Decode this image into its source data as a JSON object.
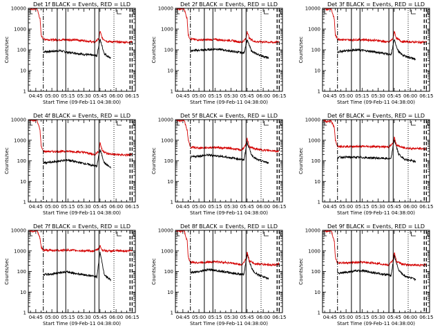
{
  "figure": {
    "background": "#ffffff",
    "events_color": "#000000",
    "lld_color": "#d40000"
  },
  "chart_data": [
    {
      "type": "line",
      "title": "Det 1f BLACK = Events, RED = LLD",
      "xlabel": "Start Time (09-Feb-11 04:38:00)",
      "ylabel": "Counts/sec",
      "yscale": "log",
      "ylim": [
        1,
        10000
      ],
      "xlim": [
        "04:38",
        "06:18"
      ],
      "ytick_labels": [
        "1",
        "10",
        "100",
        "1000",
        "10000"
      ],
      "xtick_labels": [
        "04:45",
        "05:00",
        "05:15",
        "05:30",
        "05:45",
        "06:00",
        "06:15"
      ],
      "series": [
        {
          "name": "Events",
          "color": "#000000",
          "x": [
            "04:52",
            "05:00",
            "05:08",
            "05:15",
            "05:22",
            "05:30",
            "05:38",
            "05:42",
            "05:45",
            "05:49",
            "05:52",
            "05:55"
          ],
          "y": [
            80,
            85,
            90,
            75,
            70,
            60,
            55,
            50,
            320,
            65,
            50,
            40
          ]
        },
        {
          "name": "LLD",
          "color": "#d40000",
          "x": [
            "04:39",
            "04:42",
            "04:46",
            "04:49",
            "04:50",
            "04:52",
            "05:00",
            "05:15",
            "05:30",
            "05:40",
            "05:44",
            "05:45",
            "05:47",
            "05:52",
            "06:00",
            "06:10",
            "06:15"
          ],
          "y": [
            10000,
            9000,
            10000,
            3000,
            500,
            330,
            300,
            310,
            280,
            230,
            350,
            800,
            360,
            250,
            240,
            230,
            240
          ]
        }
      ]
    },
    {
      "type": "line",
      "title": "Det 2f BLACK = Events, RED = LLD",
      "xlabel": "Start Time (09-Feb-11 04:38:00)",
      "ylabel": "Counts/sec",
      "yscale": "log",
      "ylim": [
        1,
        10000
      ],
      "xlim": [
        "04:38",
        "06:18"
      ],
      "ytick_labels": [
        "1",
        "10",
        "100",
        "1000",
        "10000"
      ],
      "xtick_labels": [
        "04:45",
        "05:00",
        "05:15",
        "05:30",
        "05:45",
        "06:00",
        "06:15"
      ],
      "series": [
        {
          "name": "Events",
          "color": "#000000",
          "x": [
            "04:52",
            "05:00",
            "05:08",
            "05:15",
            "05:22",
            "05:30",
            "05:38",
            "05:42",
            "05:45",
            "05:49",
            "05:52",
            "05:55",
            "06:05"
          ],
          "y": [
            90,
            95,
            100,
            110,
            100,
            85,
            75,
            70,
            300,
            90,
            70,
            60,
            40
          ]
        },
        {
          "name": "LLD",
          "color": "#d40000",
          "x": [
            "04:39",
            "04:42",
            "04:46",
            "04:49",
            "04:50",
            "04:52",
            "05:00",
            "05:15",
            "05:30",
            "05:40",
            "05:44",
            "05:45",
            "05:47",
            "05:52",
            "06:00",
            "06:10",
            "06:15"
          ],
          "y": [
            10000,
            9000,
            10000,
            3000,
            500,
            330,
            300,
            310,
            280,
            230,
            350,
            800,
            360,
            250,
            240,
            230,
            240
          ]
        }
      ]
    },
    {
      "type": "line",
      "title": "Det 3f BLACK = Events, RED = LLD",
      "xlabel": "Start Time (09-Feb-11 04:38:00)",
      "ylabel": "Counts/sec",
      "yscale": "log",
      "ylim": [
        1,
        10000
      ],
      "xlim": [
        "04:38",
        "06:18"
      ],
      "ytick_labels": [
        "1",
        "10",
        "100",
        "1000",
        "10000"
      ],
      "xtick_labels": [
        "04:45",
        "05:00",
        "05:15",
        "05:30",
        "05:45",
        "06:00",
        "06:15"
      ],
      "series": [
        {
          "name": "Events",
          "color": "#000000",
          "x": [
            "04:52",
            "05:00",
            "05:08",
            "05:15",
            "05:22",
            "05:30",
            "05:38",
            "05:42",
            "05:45",
            "05:49",
            "05:52",
            "05:55",
            "06:05"
          ],
          "y": [
            80,
            90,
            100,
            95,
            85,
            75,
            65,
            55,
            300,
            80,
            60,
            50,
            35
          ]
        },
        {
          "name": "LLD",
          "color": "#d40000",
          "x": [
            "04:39",
            "04:42",
            "04:46",
            "04:49",
            "04:50",
            "04:52",
            "05:00",
            "05:15",
            "05:30",
            "05:40",
            "05:44",
            "05:45",
            "05:47",
            "05:52",
            "06:00",
            "06:10",
            "06:15"
          ],
          "y": [
            10000,
            9000,
            10000,
            3000,
            500,
            330,
            300,
            310,
            280,
            230,
            350,
            800,
            360,
            250,
            240,
            230,
            240
          ]
        }
      ]
    },
    {
      "type": "line",
      "title": "Det 4f BLACK = Events, RED = LLD",
      "xlabel": "Start Time (09-Feb-11 04:38:00)",
      "ylabel": "Counts/sec",
      "yscale": "log",
      "ylim": [
        1,
        10000
      ],
      "xlim": [
        "04:38",
        "06:18"
      ],
      "ytick_labels": [
        "1",
        "10",
        "100",
        "1000",
        "10000"
      ],
      "xtick_labels": [
        "04:45",
        "05:00",
        "05:15",
        "05:30",
        "05:45",
        "06:00",
        "06:15"
      ],
      "series": [
        {
          "name": "Events",
          "color": "#000000",
          "x": [
            "04:52",
            "05:00",
            "05:08",
            "05:15",
            "05:22",
            "05:30",
            "05:38",
            "05:42",
            "05:45",
            "05:49",
            "05:52",
            "05:55"
          ],
          "y": [
            80,
            85,
            100,
            110,
            90,
            75,
            60,
            55,
            350,
            80,
            60,
            45
          ]
        },
        {
          "name": "LLD",
          "color": "#d40000",
          "x": [
            "04:39",
            "04:42",
            "04:46",
            "04:49",
            "04:50",
            "04:52",
            "05:00",
            "05:15",
            "05:30",
            "05:40",
            "05:44",
            "05:45",
            "05:47",
            "05:52",
            "06:00",
            "06:10",
            "06:15"
          ],
          "y": [
            10000,
            9000,
            10000,
            3000,
            500,
            290,
            280,
            290,
            260,
            200,
            300,
            800,
            320,
            220,
            200,
            190,
            200
          ]
        }
      ]
    },
    {
      "type": "line",
      "title": "Det 5f BLACK = Events, RED = LLD",
      "xlabel": "Start Time (09-Feb-11 04:38:00)",
      "ylabel": "Counts/sec",
      "yscale": "log",
      "ylim": [
        1,
        10000
      ],
      "xlim": [
        "04:38",
        "06:18"
      ],
      "ytick_labels": [
        "1",
        "10",
        "100",
        "1000",
        "10000"
      ],
      "xtick_labels": [
        "04:45",
        "05:00",
        "05:15",
        "05:30",
        "05:45",
        "06:00",
        "06:15"
      ],
      "series": [
        {
          "name": "Events",
          "color": "#000000",
          "x": [
            "04:52",
            "05:00",
            "05:08",
            "05:15",
            "05:22",
            "05:30",
            "05:38",
            "05:42",
            "05:45",
            "05:49",
            "05:52",
            "05:55",
            "06:05"
          ],
          "y": [
            150,
            170,
            190,
            180,
            160,
            140,
            120,
            110,
            800,
            200,
            140,
            110,
            80
          ]
        },
        {
          "name": "LLD",
          "color": "#d40000",
          "x": [
            "04:39",
            "04:42",
            "04:46",
            "04:49",
            "04:50",
            "04:52",
            "05:00",
            "05:15",
            "05:30",
            "05:40",
            "05:44",
            "05:45",
            "05:47",
            "05:52",
            "06:00",
            "06:10",
            "06:15"
          ],
          "y": [
            10000,
            9000,
            10000,
            3000,
            1000,
            460,
            420,
            450,
            400,
            330,
            600,
            1200,
            500,
            380,
            330,
            310,
            290
          ]
        }
      ]
    },
    {
      "type": "line",
      "title": "Det 6f BLACK = Events, RED = LLD",
      "xlabel": "Start Time (09-Feb-11 04:38:00)",
      "ylabel": "Counts/sec",
      "yscale": "log",
      "ylim": [
        1,
        10000
      ],
      "xlim": [
        "04:38",
        "06:18"
      ],
      "ytick_labels": [
        "1",
        "10",
        "100",
        "1000",
        "10000"
      ],
      "xtick_labels": [
        "04:45",
        "05:00",
        "05:15",
        "05:30",
        "05:45",
        "06:00",
        "06:15"
      ],
      "series": [
        {
          "name": "Events",
          "color": "#000000",
          "x": [
            "04:52",
            "05:00",
            "05:08",
            "05:15",
            "05:22",
            "05:30",
            "05:38",
            "05:42",
            "05:45",
            "05:49",
            "05:52",
            "05:55",
            "06:05"
          ],
          "y": [
            150,
            150,
            150,
            145,
            140,
            135,
            130,
            125,
            1100,
            220,
            150,
            120,
            90
          ]
        },
        {
          "name": "LLD",
          "color": "#d40000",
          "x": [
            "04:39",
            "04:42",
            "04:46",
            "04:49",
            "04:50",
            "04:52",
            "05:00",
            "05:15",
            "05:30",
            "05:40",
            "05:44",
            "05:45",
            "05:47",
            "05:52",
            "06:00",
            "06:10",
            "06:15"
          ],
          "y": [
            9000,
            8000,
            9000,
            4000,
            1000,
            520,
            500,
            500,
            490,
            470,
            700,
            1400,
            600,
            450,
            400,
            390,
            380
          ]
        }
      ]
    },
    {
      "type": "line",
      "title": "Det 7f BLACK = Events, RED = LLD",
      "xlabel": "Start Time (09-Feb-11 04:38:00)",
      "ylabel": "Counts/sec",
      "yscale": "log",
      "ylim": [
        1,
        10000
      ],
      "xlim": [
        "04:38",
        "06:18"
      ],
      "ytick_labels": [
        "1",
        "10",
        "100",
        "1000",
        "10000"
      ],
      "xtick_labels": [
        "04:45",
        "05:00",
        "05:15",
        "05:30",
        "05:45",
        "06:00",
        "06:15"
      ],
      "series": [
        {
          "name": "Events",
          "color": "#000000",
          "x": [
            "04:52",
            "05:00",
            "05:08",
            "05:15",
            "05:22",
            "05:30",
            "05:38",
            "05:42",
            "05:45",
            "05:49",
            "05:52",
            "05:55"
          ],
          "y": [
            70,
            75,
            90,
            95,
            80,
            70,
            60,
            55,
            900,
            70,
            50,
            40
          ]
        },
        {
          "name": "LLD",
          "color": "#d40000",
          "x": [
            "04:39",
            "04:42",
            "04:46",
            "04:49",
            "04:50",
            "04:52",
            "05:00",
            "05:15",
            "05:30",
            "05:40",
            "05:44",
            "05:45",
            "05:47",
            "05:52",
            "06:00",
            "06:10",
            "06:15"
          ],
          "y": [
            10000,
            9000,
            10000,
            4000,
            1500,
            1100,
            1050,
            1100,
            1000,
            1000,
            1300,
            1800,
            1100,
            1000,
            1000,
            1000,
            1050
          ]
        }
      ]
    },
    {
      "type": "line",
      "title": "Det 8f BLACK = Events, RED = LLD",
      "xlabel": "Start Time (09-Feb-11 04:38:00)",
      "ylabel": "Counts/sec",
      "yscale": "log",
      "ylim": [
        1,
        10000
      ],
      "xlim": [
        "04:38",
        "06:18"
      ],
      "ytick_labels": [
        "1",
        "10",
        "100",
        "1000",
        "10000"
      ],
      "xtick_labels": [
        "04:45",
        "05:00",
        "05:15",
        "05:30",
        "05:45",
        "06:00",
        "06:15"
      ],
      "series": [
        {
          "name": "Events",
          "color": "#000000",
          "x": [
            "04:52",
            "05:00",
            "05:08",
            "05:15",
            "05:22",
            "05:30",
            "05:38",
            "05:42",
            "05:45",
            "05:49",
            "05:52",
            "05:55",
            "06:05"
          ],
          "y": [
            90,
            100,
            120,
            115,
            100,
            85,
            75,
            70,
            700,
            150,
            90,
            70,
            45
          ]
        },
        {
          "name": "LLD",
          "color": "#d40000",
          "x": [
            "04:39",
            "04:42",
            "04:46",
            "04:49",
            "04:50",
            "04:52",
            "05:00",
            "05:15",
            "05:30",
            "05:40",
            "05:44",
            "05:45",
            "05:47",
            "05:52",
            "06:00",
            "06:10",
            "06:15"
          ],
          "y": [
            10000,
            9000,
            10000,
            3000,
            500,
            280,
            270,
            300,
            260,
            210,
            400,
            900,
            330,
            240,
            220,
            210,
            230
          ]
        }
      ]
    },
    {
      "type": "line",
      "title": "Det 9f BLACK = Events, RED = LLD",
      "xlabel": "Start Time (09-Feb-11 04:38:00)",
      "ylabel": "Counts/sec",
      "yscale": "log",
      "ylim": [
        1,
        10000
      ],
      "xlim": [
        "04:38",
        "06:18"
      ],
      "ytick_labels": [
        "1",
        "10",
        "100",
        "1000",
        "10000"
      ],
      "xtick_labels": [
        "04:45",
        "05:00",
        "05:15",
        "05:30",
        "05:45",
        "06:00",
        "06:15"
      ],
      "series": [
        {
          "name": "Events",
          "color": "#000000",
          "x": [
            "04:52",
            "05:00",
            "05:08",
            "05:15",
            "05:22",
            "05:30",
            "05:38",
            "05:42",
            "05:45",
            "05:49",
            "05:52",
            "05:55",
            "06:05"
          ],
          "y": [
            80,
            90,
            105,
            110,
            95,
            80,
            70,
            65,
            600,
            120,
            80,
            60,
            40
          ]
        },
        {
          "name": "LLD",
          "color": "#d40000",
          "x": [
            "04:39",
            "04:42",
            "04:46",
            "04:49",
            "04:50",
            "04:52",
            "05:00",
            "05:15",
            "05:30",
            "05:40",
            "05:44",
            "05:45",
            "05:47",
            "05:52",
            "06:00",
            "06:10",
            "06:15"
          ],
          "y": [
            10000,
            9000,
            10000,
            3000,
            500,
            270,
            260,
            280,
            250,
            200,
            380,
            850,
            320,
            230,
            210,
            200,
            220
          ]
        }
      ]
    }
  ]
}
